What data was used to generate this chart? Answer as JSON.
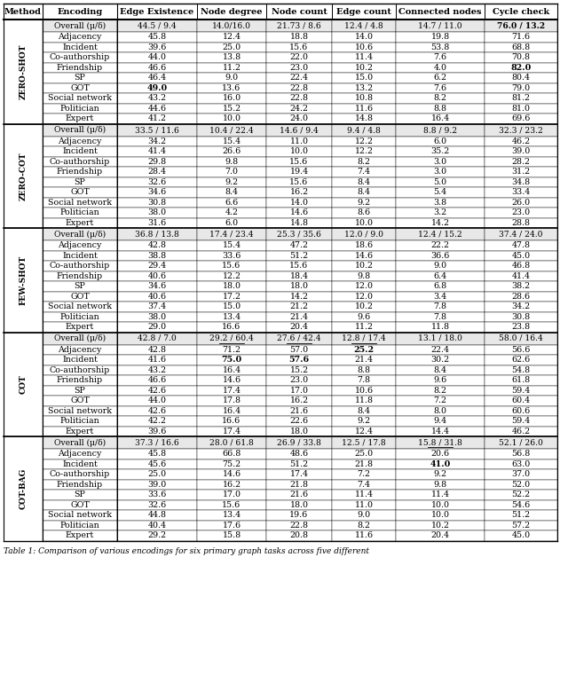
{
  "headers": [
    "Method",
    "Encoding",
    "Edge Existence",
    "Node degree",
    "Node count",
    "Edge count",
    "Connected nodes",
    "Cycle check"
  ],
  "sections": [
    {
      "method": "ZERO-SHOT",
      "method_display": "ZERO-SHOT",
      "rows": [
        {
          "encoding": "Overall (μ/δ)",
          "values": [
            "44.5 / 9.4",
            "14.0/16.0",
            "21.73 / 8.6",
            "12.4 / 4.8",
            "14.7 / 11.0",
            "76.0 / 13.2"
          ],
          "is_overall": true,
          "bold_cols": [
            5
          ],
          "underline_cols": []
        },
        {
          "encoding": "Adjacency",
          "values": [
            "45.8",
            "12.4",
            "18.8",
            "14.0",
            "19.8",
            "71.6"
          ],
          "is_overall": false,
          "bold_cols": [],
          "underline_cols": []
        },
        {
          "encoding": "Incident",
          "values": [
            "39.6",
            "25.0",
            "15.6",
            "10.6",
            "53.8",
            "68.8"
          ],
          "is_overall": false,
          "bold_cols": [],
          "underline_cols": []
        },
        {
          "encoding": "Co-authorship",
          "values": [
            "44.0",
            "13.8",
            "22.0",
            "11.4",
            "7.6",
            "70.8"
          ],
          "is_overall": false,
          "bold_cols": [],
          "underline_cols": []
        },
        {
          "encoding": "Friendship",
          "values": [
            "46.6",
            "11.2",
            "23.0",
            "10.2",
            "4.0",
            "82.0"
          ],
          "is_overall": false,
          "bold_cols": [
            5
          ],
          "underline_cols": []
        },
        {
          "encoding": "SP",
          "values": [
            "46.4",
            "9.0",
            "22.4",
            "15.0",
            "6.2",
            "80.4"
          ],
          "is_overall": false,
          "bold_cols": [],
          "underline_cols": []
        },
        {
          "encoding": "GOT",
          "values": [
            "49.0",
            "13.6",
            "22.8",
            "13.2",
            "7.6",
            "79.0"
          ],
          "is_overall": false,
          "bold_cols": [
            0
          ],
          "underline_cols": []
        },
        {
          "encoding": "Social network",
          "values": [
            "43.2",
            "16.0",
            "22.8",
            "10.8",
            "8.2",
            "81.2"
          ],
          "is_overall": false,
          "bold_cols": [],
          "underline_cols": []
        },
        {
          "encoding": "Politician",
          "values": [
            "44.6",
            "15.2",
            "24.2",
            "11.6",
            "8.8",
            "81.0"
          ],
          "is_overall": false,
          "bold_cols": [],
          "underline_cols": []
        },
        {
          "encoding": "Expert",
          "values": [
            "41.2",
            "10.0",
            "24.0",
            "14.8",
            "16.4",
            "69.6"
          ],
          "is_overall": false,
          "bold_cols": [],
          "underline_cols": []
        }
      ]
    },
    {
      "method": "ZERO-COT",
      "method_display": "ZERO-COT",
      "rows": [
        {
          "encoding": "Overall (μ/δ)",
          "values": [
            "33.5 / 11.6",
            "10.4 / 22.4",
            "14.6 / 9.4",
            "9.4 / 4.8",
            "8.8 / 9.2",
            "32.3 / 23.2"
          ],
          "is_overall": true,
          "bold_cols": [],
          "underline_cols": []
        },
        {
          "encoding": "Adjacency",
          "values": [
            "34.2",
            "15.4",
            "11.0",
            "12.2",
            "6.0",
            "46.2"
          ],
          "is_overall": false,
          "bold_cols": [],
          "underline_cols": []
        },
        {
          "encoding": "Incident",
          "values": [
            "41.4",
            "26.6",
            "10.0",
            "12.2",
            "35.2",
            "39.0"
          ],
          "is_overall": false,
          "bold_cols": [],
          "underline_cols": []
        },
        {
          "encoding": "Co-authorship",
          "values": [
            "29.8",
            "9.8",
            "15.6",
            "8.2",
            "3.0",
            "28.2"
          ],
          "is_overall": false,
          "bold_cols": [],
          "underline_cols": []
        },
        {
          "encoding": "Friendship",
          "values": [
            "28.4",
            "7.0",
            "19.4",
            "7.4",
            "3.0",
            "31.2"
          ],
          "is_overall": false,
          "bold_cols": [],
          "underline_cols": []
        },
        {
          "encoding": "SP",
          "values": [
            "32.6",
            "9.2",
            "15.6",
            "8.4",
            "5.0",
            "34.8"
          ],
          "is_overall": false,
          "bold_cols": [],
          "underline_cols": []
        },
        {
          "encoding": "GOT",
          "values": [
            "34.6",
            "8.4",
            "16.2",
            "8.4",
            "5.4",
            "33.4"
          ],
          "is_overall": false,
          "bold_cols": [],
          "underline_cols": []
        },
        {
          "encoding": "Social network",
          "values": [
            "30.8",
            "6.6",
            "14.0",
            "9.2",
            "3.8",
            "26.0"
          ],
          "is_overall": false,
          "bold_cols": [],
          "underline_cols": []
        },
        {
          "encoding": "Politician",
          "values": [
            "38.0",
            "4.2",
            "14.6",
            "8.6",
            "3.2",
            "23.0"
          ],
          "is_overall": false,
          "bold_cols": [],
          "underline_cols": []
        },
        {
          "encoding": "Expert",
          "values": [
            "31.6",
            "6.0",
            "14.8",
            "10.0",
            "14.2",
            "28.8"
          ],
          "is_overall": false,
          "bold_cols": [],
          "underline_cols": []
        }
      ]
    },
    {
      "method": "FEW-SHOT",
      "method_display": "FEW-SHOT",
      "rows": [
        {
          "encoding": "Overall (μ/δ)",
          "values": [
            "36.8 / 13.8",
            "17.4 / 23.4",
            "25.3 / 35.6",
            "12.0 / 9.0",
            "12.4 / 15.2",
            "37.4 / 24.0"
          ],
          "is_overall": true,
          "bold_cols": [],
          "underline_cols": []
        },
        {
          "encoding": "Adjacency",
          "values": [
            "42.8",
            "15.4",
            "47.2",
            "18.6",
            "22.2",
            "47.8"
          ],
          "is_overall": false,
          "bold_cols": [],
          "underline_cols": []
        },
        {
          "encoding": "Incident",
          "values": [
            "38.8",
            "33.6",
            "51.2",
            "14.6",
            "36.6",
            "45.0"
          ],
          "is_overall": false,
          "bold_cols": [],
          "underline_cols": []
        },
        {
          "encoding": "Co-authorship",
          "values": [
            "29.4",
            "15.6",
            "15.6",
            "10.2",
            "9.0",
            "46.8"
          ],
          "is_overall": false,
          "bold_cols": [],
          "underline_cols": []
        },
        {
          "encoding": "Friendship",
          "values": [
            "40.6",
            "12.2",
            "18.4",
            "9.8",
            "6.4",
            "41.4"
          ],
          "is_overall": false,
          "bold_cols": [],
          "underline_cols": []
        },
        {
          "encoding": "SP",
          "values": [
            "34.6",
            "18.0",
            "18.0",
            "12.0",
            "6.8",
            "38.2"
          ],
          "is_overall": false,
          "bold_cols": [],
          "underline_cols": []
        },
        {
          "encoding": "GOT",
          "values": [
            "40.6",
            "17.2",
            "14.2",
            "12.0",
            "3.4",
            "28.6"
          ],
          "is_overall": false,
          "bold_cols": [],
          "underline_cols": []
        },
        {
          "encoding": "Social network",
          "values": [
            "37.4",
            "15.0",
            "21.2",
            "10.2",
            "7.8",
            "34.2"
          ],
          "is_overall": false,
          "bold_cols": [],
          "underline_cols": []
        },
        {
          "encoding": "Politician",
          "values": [
            "38.0",
            "13.4",
            "21.4",
            "9.6",
            "7.8",
            "30.8"
          ],
          "is_overall": false,
          "bold_cols": [],
          "underline_cols": []
        },
        {
          "encoding": "Expert",
          "values": [
            "29.0",
            "16.6",
            "20.4",
            "11.2",
            "11.8",
            "23.8"
          ],
          "is_overall": false,
          "bold_cols": [],
          "underline_cols": []
        }
      ]
    },
    {
      "method": "COT",
      "method_display": "COT",
      "rows": [
        {
          "encoding": "Overall (μ/δ)",
          "values": [
            "42.8 / 7.0",
            "29.2 / 60.4",
            "27.6 / 42.4",
            "12.8 / 17.4",
            "13.1 / 18.0",
            "58.0 / 16.4"
          ],
          "is_overall": true,
          "bold_cols": [],
          "underline_cols": [
            1,
            2,
            3
          ]
        },
        {
          "encoding": "Adjacency",
          "values": [
            "42.8",
            "71.2",
            "57.0",
            "25.2",
            "22.4",
            "56.6"
          ],
          "is_overall": false,
          "bold_cols": [
            3
          ],
          "underline_cols": []
        },
        {
          "encoding": "Incident",
          "values": [
            "41.6",
            "75.0",
            "57.6",
            "21.4",
            "30.2",
            "62.6"
          ],
          "is_overall": false,
          "bold_cols": [
            1,
            2
          ],
          "underline_cols": []
        },
        {
          "encoding": "Co-authorship",
          "values": [
            "43.2",
            "16.4",
            "15.2",
            "8.8",
            "8.4",
            "54.8"
          ],
          "is_overall": false,
          "bold_cols": [],
          "underline_cols": []
        },
        {
          "encoding": "Friendship",
          "values": [
            "46.6",
            "14.6",
            "23.0",
            "7.8",
            "9.6",
            "61.8"
          ],
          "is_overall": false,
          "bold_cols": [],
          "underline_cols": []
        },
        {
          "encoding": "SP",
          "values": [
            "42.6",
            "17.4",
            "17.0",
            "10.6",
            "8.2",
            "59.4"
          ],
          "is_overall": false,
          "bold_cols": [],
          "underline_cols": []
        },
        {
          "encoding": "GOT",
          "values": [
            "44.0",
            "17.8",
            "16.2",
            "11.8",
            "7.2",
            "60.4"
          ],
          "is_overall": false,
          "bold_cols": [],
          "underline_cols": []
        },
        {
          "encoding": "Social network",
          "values": [
            "42.6",
            "16.4",
            "21.6",
            "8.4",
            "8.0",
            "60.6"
          ],
          "is_overall": false,
          "bold_cols": [],
          "underline_cols": []
        },
        {
          "encoding": "Politician",
          "values": [
            "42.2",
            "16.6",
            "22.6",
            "9.2",
            "9.4",
            "59.4"
          ],
          "is_overall": false,
          "bold_cols": [],
          "underline_cols": []
        },
        {
          "encoding": "Expert",
          "values": [
            "39.6",
            "17.4",
            "18.0",
            "12.4",
            "14.4",
            "46.2"
          ],
          "is_overall": false,
          "bold_cols": [],
          "underline_cols": []
        }
      ]
    },
    {
      "method": "COT-BAG",
      "method_display": "COT-BAG",
      "rows": [
        {
          "encoding": "Overall (μ/δ)",
          "values": [
            "37.3 / 16.6",
            "28.0 / 61.8",
            "26.9 / 33.8",
            "12.5 / 17.8",
            "15.8 / 31.8",
            "52.1 / 26.0"
          ],
          "is_overall": true,
          "bold_cols": [],
          "underline_cols": [
            4
          ]
        },
        {
          "encoding": "Adjacency",
          "values": [
            "45.8",
            "66.8",
            "48.6",
            "25.0",
            "20.6",
            "56.8"
          ],
          "is_overall": false,
          "bold_cols": [],
          "underline_cols": []
        },
        {
          "encoding": "Incident",
          "values": [
            "45.6",
            "75.2",
            "51.2",
            "21.8",
            "41.0",
            "63.0"
          ],
          "is_overall": false,
          "bold_cols": [
            4
          ],
          "underline_cols": []
        },
        {
          "encoding": "Co-authorship",
          "values": [
            "25.0",
            "14.6",
            "17.4",
            "7.2",
            "9.2",
            "37.0"
          ],
          "is_overall": false,
          "bold_cols": [],
          "underline_cols": []
        },
        {
          "encoding": "Friendship",
          "values": [
            "39.0",
            "16.2",
            "21.8",
            "7.4",
            "9.8",
            "52.0"
          ],
          "is_overall": false,
          "bold_cols": [],
          "underline_cols": []
        },
        {
          "encoding": "SP",
          "values": [
            "33.6",
            "17.0",
            "21.6",
            "11.4",
            "11.4",
            "52.2"
          ],
          "is_overall": false,
          "bold_cols": [],
          "underline_cols": []
        },
        {
          "encoding": "GOT",
          "values": [
            "32.6",
            "15.6",
            "18.0",
            "11.0",
            "10.0",
            "54.6"
          ],
          "is_overall": false,
          "bold_cols": [],
          "underline_cols": []
        },
        {
          "encoding": "Social network",
          "values": [
            "44.8",
            "13.4",
            "19.6",
            "9.0",
            "10.0",
            "51.2"
          ],
          "is_overall": false,
          "bold_cols": [],
          "underline_cols": []
        },
        {
          "encoding": "Politician",
          "values": [
            "40.4",
            "17.6",
            "22.8",
            "8.2",
            "10.2",
            "57.2"
          ],
          "is_overall": false,
          "bold_cols": [],
          "underline_cols": []
        },
        {
          "encoding": "Expert",
          "values": [
            "29.2",
            "15.8",
            "20.8",
            "11.6",
            "20.4",
            "45.0"
          ],
          "is_overall": false,
          "bold_cols": [],
          "underline_cols": []
        }
      ]
    }
  ],
  "caption": "Table 1: Comparison of various encodings for six primary graph tasks across five different"
}
